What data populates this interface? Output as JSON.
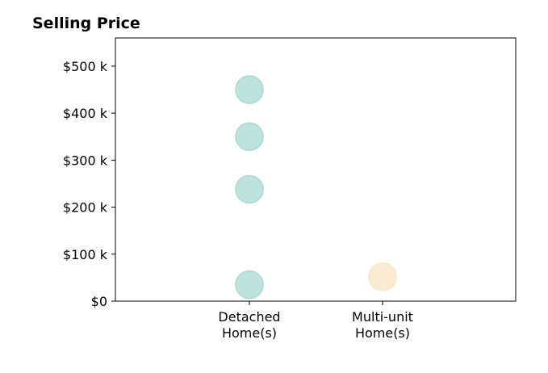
{
  "chart_data": {
    "type": "scatter",
    "title": "Selling Price",
    "xlabel": "",
    "ylabel": "",
    "categories": [
      [
        "Detached",
        "Home(s)"
      ],
      [
        "Multi-unit",
        "Home(s)"
      ]
    ],
    "ylim": [
      0,
      560000
    ],
    "yticks": [
      {
        "value": 0,
        "label": "$0"
      },
      {
        "value": 100000,
        "label": "$100 k"
      },
      {
        "value": 200000,
        "label": "$200 k"
      },
      {
        "value": 300000,
        "label": "$300 k"
      },
      {
        "value": 400000,
        "label": "$400 k"
      },
      {
        "value": 500000,
        "label": "$500 k"
      }
    ],
    "grid": false,
    "series": [
      {
        "category": 0,
        "color": "#a8d8d3",
        "values": [
          450000,
          350000,
          238000,
          35000
        ]
      },
      {
        "category": 1,
        "color": "#f7e5c4",
        "values": [
          52000
        ]
      }
    ]
  }
}
